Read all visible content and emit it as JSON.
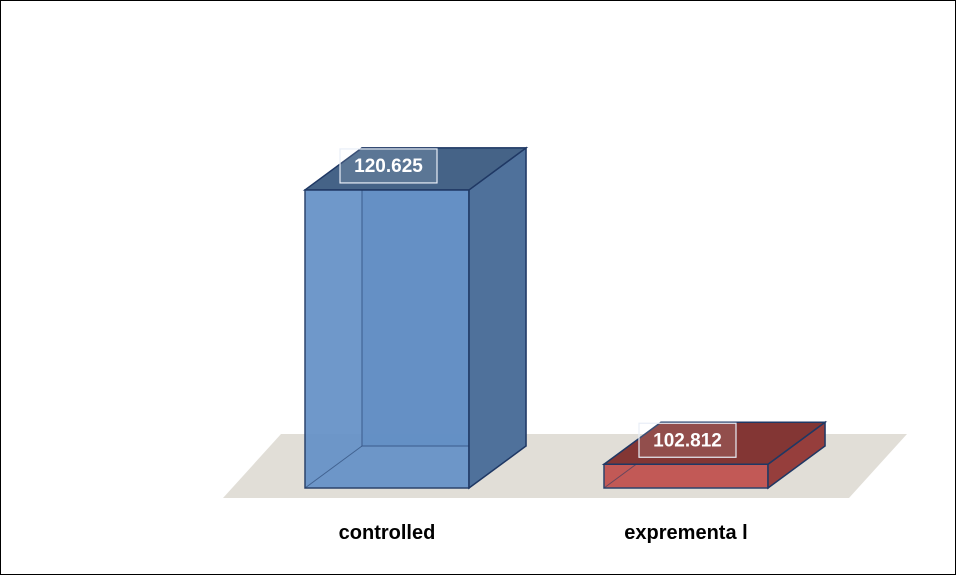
{
  "chart_data": {
    "type": "bar",
    "style": "3d-column",
    "categories": [
      "controlled",
      "exprementa l"
    ],
    "values": [
      120.625,
      102.812
    ],
    "data_labels": [
      "120.625",
      "102.812"
    ],
    "colors": [
      "#6591c7",
      "#c0504d"
    ],
    "gridlines": false,
    "legend": "none",
    "title": "",
    "xlabel": "",
    "ylabel": ""
  }
}
